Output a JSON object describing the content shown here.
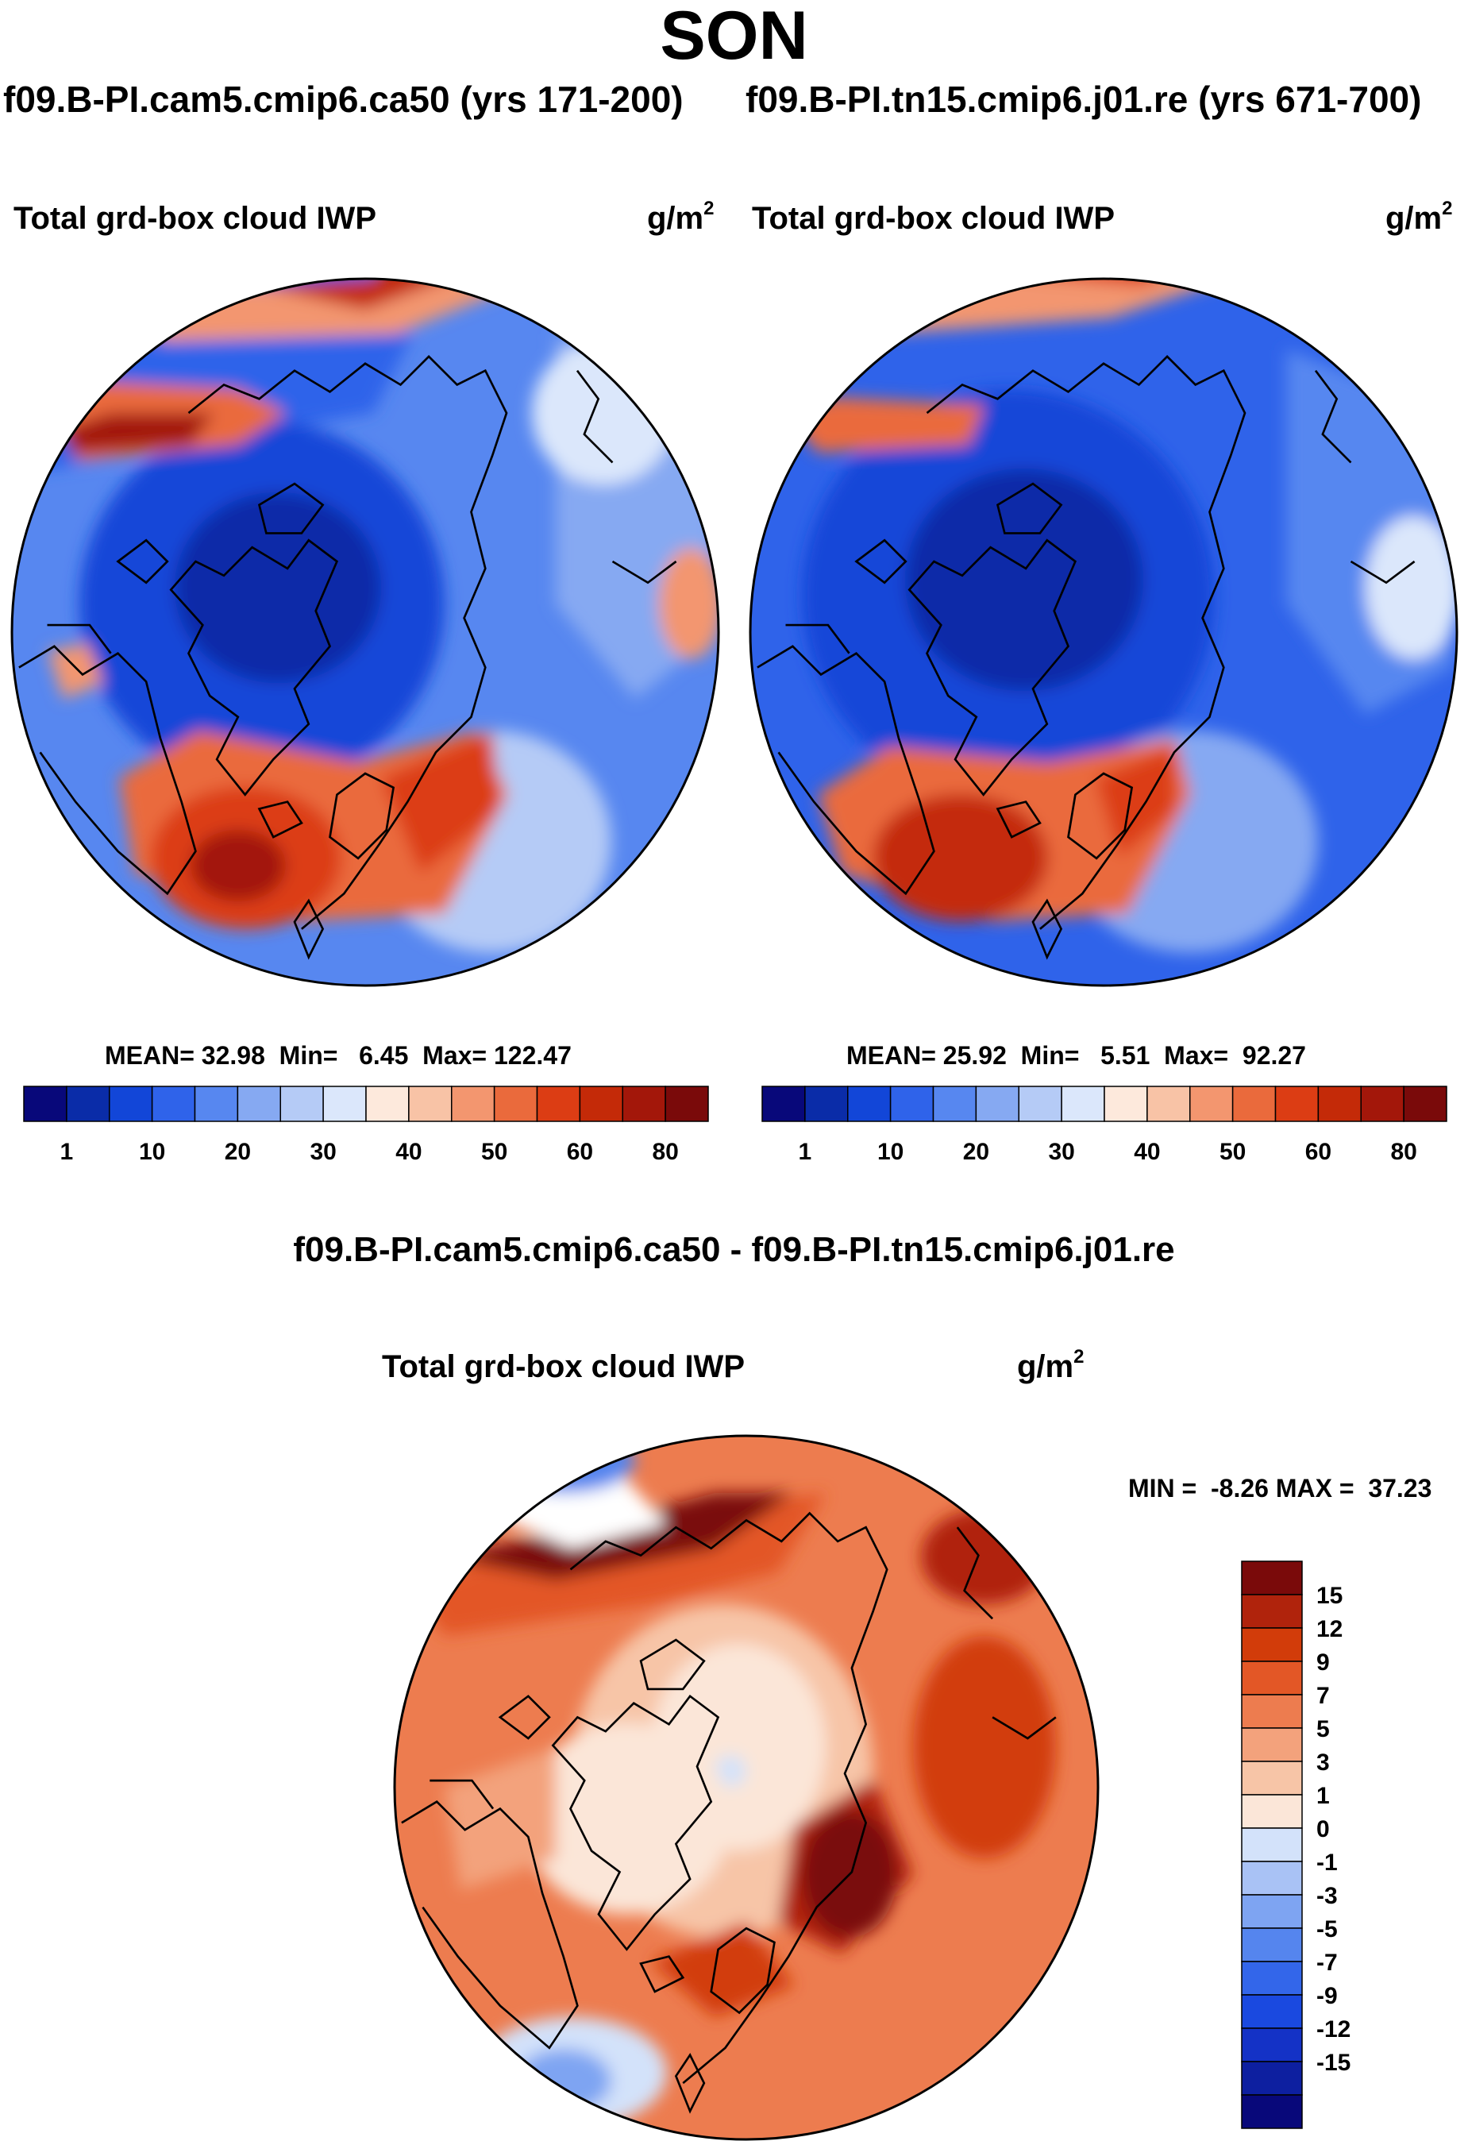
{
  "title": "SON",
  "case_names": [
    "f09.B-PI.cam5.cmip6.ca50 (yrs 171-200)",
    "f09.B-PI.tn15.cmip6.j01.re (yrs 671-700)"
  ],
  "diff_title": "f09.B-PI.cam5.cmip6.ca50 - f09.B-PI.tn15.cmip6.j01.re",
  "colors": {
    "abs_scale": [
      "#08087a",
      "#0a2ca8",
      "#1246d8",
      "#2f63ea",
      "#5787f0",
      "#86a9f2",
      "#b5cbf6",
      "#dbe7fb",
      "#fde9dc",
      "#f8c3a6",
      "#f3966f",
      "#ea6a3c",
      "#dc3d14",
      "#c42a08",
      "#a3170a",
      "#7a0a0a"
    ],
    "diff_scale": [
      "#08087a",
      "#0d1fa0",
      "#1432c6",
      "#1a49e0",
      "#3366ea",
      "#5585ee",
      "#7ea4f2",
      "#a9c2f5",
      "#d3e2fa",
      "#fbe6d8",
      "#f7c5a7",
      "#f3a27c",
      "#ed7c4f",
      "#e35726",
      "#d23c0a",
      "#b0230c",
      "#7a0a0a"
    ]
  },
  "chart_data": [
    {
      "type": "heatmap",
      "projection": "north-polar-stereographic",
      "title": "Total grd-box cloud IWP",
      "units": "g/m",
      "units_superscript": "2",
      "stats": {
        "mean_label": "MEAN=",
        "mean": "32.98",
        "min_label": "Min=",
        "min": "6.45",
        "max_label": "Max=",
        "max": "122.47"
      },
      "colorbar": {
        "orientation": "horizontal",
        "levels": [
          1,
          5,
          10,
          15,
          20,
          25,
          30,
          35,
          40,
          45,
          50,
          55,
          60,
          70,
          80
        ],
        "tick_labels": [
          "1",
          "10",
          "20",
          "30",
          "40",
          "50",
          "60",
          "80"
        ],
        "tick_levels": [
          1,
          10,
          20,
          30,
          40,
          50,
          60,
          80
        ]
      }
    },
    {
      "type": "heatmap",
      "projection": "north-polar-stereographic",
      "title": "Total grd-box cloud IWP",
      "units": "g/m",
      "units_superscript": "2",
      "stats": {
        "mean_label": "MEAN=",
        "mean": "25.92",
        "min_label": "Min=",
        "min": "5.51",
        "max_label": "Max=",
        "max": "92.27"
      },
      "colorbar": {
        "orientation": "horizontal",
        "levels": [
          1,
          5,
          10,
          15,
          20,
          25,
          30,
          35,
          40,
          45,
          50,
          55,
          60,
          70,
          80
        ],
        "tick_labels": [
          "1",
          "10",
          "20",
          "30",
          "40",
          "50",
          "60",
          "80"
        ],
        "tick_levels": [
          1,
          10,
          20,
          30,
          40,
          50,
          60,
          80
        ]
      }
    },
    {
      "type": "heatmap",
      "projection": "north-polar-stereographic",
      "title": "Total grd-box cloud IWP",
      "units": "g/m",
      "units_superscript": "2",
      "stats": {
        "min_label": "MIN =",
        "min": "-8.26",
        "max_label": "MAX =",
        "max": "37.23"
      },
      "colorbar": {
        "orientation": "vertical",
        "levels": [
          -15,
          -12,
          -9,
          -7,
          -5,
          -3,
          -1,
          0,
          1,
          3,
          5,
          7,
          9,
          12,
          15
        ],
        "tick_labels": [
          "15",
          "12",
          "9",
          "7",
          "5",
          "3",
          "1",
          "0",
          "-1",
          "-3",
          "-5",
          "-7",
          "-9",
          "-12",
          "-15"
        ]
      }
    }
  ]
}
